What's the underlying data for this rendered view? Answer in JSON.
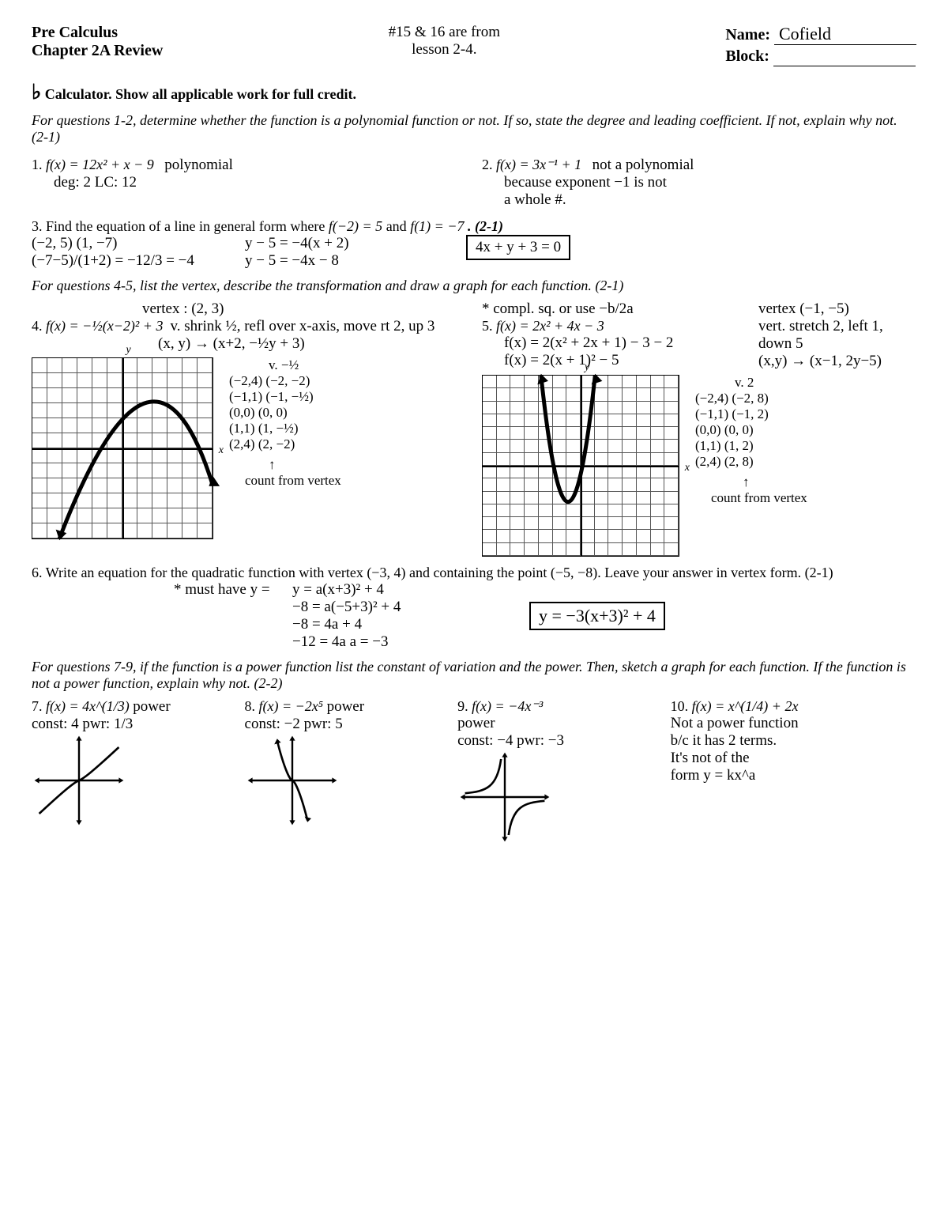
{
  "header": {
    "course": "Pre Calculus",
    "subtitle": "Chapter 2A Review",
    "note_top": "#15 & 16 are from",
    "note_bot": "lesson 2-4.",
    "name_lbl": "Name:",
    "name_val": "Cofield",
    "block_lbl": "Block:"
  },
  "calc_note": "Calculator. Show all applicable work for full credit.",
  "instr_1_2": "For questions 1-2, determine whether the function is a polynomial function or not. If so, state the degree and leading coefficient. If not, explain why not. (2-1)",
  "q1": {
    "num": "1.",
    "fx": "f(x) = 12x² + x − 9",
    "ans1": "polynomial",
    "ans2": "deg: 2   LC: 12"
  },
  "q2": {
    "num": "2.",
    "fx": "f(x) = 3x⁻¹ + 1",
    "ans1": "not a polynomial",
    "ans2": "because exponent −1 is not",
    "ans3": "a whole #."
  },
  "q3": {
    "num": "3.",
    "prompt_a": "Find the equation of a line in general form where ",
    "fx1": "f(−2) = 5",
    "and": " and ",
    "fx2": "f(1) = −7",
    "ref": ". (2-1)",
    "pts": "(−2, 5)   (1, −7)",
    "slope": "(−7−5)/(1+2) = −12/3 = −4",
    "work1": "y − 5 = −4(x + 2)",
    "work2": "y − 5 = −4x − 8",
    "answer": "4x + y + 3 = 0"
  },
  "instr_4_5": "For questions 4-5, list the vertex, describe the transformation and draw a graph for each function. (2-1)",
  "q4": {
    "num": "4.",
    "fx": "f(x) = −½(x−2)² + 3",
    "vertex": "vertex : (2, 3)",
    "desc": "v. shrink ½, refl over x-axis, move rt 2, up 3",
    "map": "(x, y) → (x+2, −½y + 3)",
    "tbl_hdr": "v.  −½",
    "tbl": [
      "(−2,4)   (−2, −2)",
      "(−1,1)   (−1, −½)",
      "(0,0)    (0, 0)",
      "(1,1)    (1, −½)",
      "(2,4)    (2, −2)"
    ],
    "foot": "count from vertex",
    "graph": {
      "grid_n": 12,
      "curve_color": "#000000"
    }
  },
  "q5": {
    "num": "5.",
    "hint": "* compl. sq. or use −b/2a",
    "fx": "f(x) = 2x² + 4x − 3",
    "w1": "f(x) = 2(x² + 2x + 1) − 3 − 2",
    "w2": "f(x) = 2(x + 1)² − 5",
    "vertex": "vertex (−1, −5)",
    "desc": "vert. stretch 2, left 1, down 5",
    "map": "(x,y) → (x−1, 2y−5)",
    "tbl_hdr": "v.  2",
    "tbl": [
      "(−2,4)  (−2, 8)",
      "(−1,1)  (−1, 2)",
      "(0,0)   (0, 0)",
      "(1,1)   (1, 2)",
      "(2,4)   (2, 8)"
    ],
    "foot": "count from vertex",
    "graph": {
      "grid_n": 14,
      "curve_color": "#000000"
    }
  },
  "q6": {
    "num": "6.",
    "prompt": "Write an equation for the quadratic function with vertex (−3, 4) and containing the point (−5, −8). Leave your answer in vertex form. (2-1)",
    "note": "* must have y =",
    "w1": "y = a(x+3)² + 4",
    "w2": "−8 = a(−5+3)² + 4",
    "w3": "−8 = 4a + 4",
    "w4": "−12 = 4a     a = −3",
    "ans": "y = −3(x+3)² + 4"
  },
  "instr_7_9": "For questions 7-9, if the function is a power function list the constant of variation and the power. Then, sketch a graph for each function. If the function is not a power function, explain why not. (2-2)",
  "q7": {
    "num": "7.",
    "fx": "f(x) = 4x^(1/3)",
    "t": "power",
    "c": "const: 4  pwr: 1/3"
  },
  "q8": {
    "num": "8.",
    "fx": "f(x) = −2x⁵",
    "t": "power",
    "c": "const: −2  pwr: 5"
  },
  "q9": {
    "num": "9.",
    "fx": "f(x) = −4x⁻³",
    "t": "power",
    "c": "const: −4  pwr: −3"
  },
  "q10": {
    "num": "10.",
    "fx": "f(x) = x^(1/4) + 2x",
    "a1": "Not a power function",
    "a2": "b/c it has 2 terms.",
    "a3": "It's not of the",
    "a4": "form  y = kx^a"
  },
  "colors": {
    "ink": "#000000",
    "bg": "#ffffff"
  }
}
